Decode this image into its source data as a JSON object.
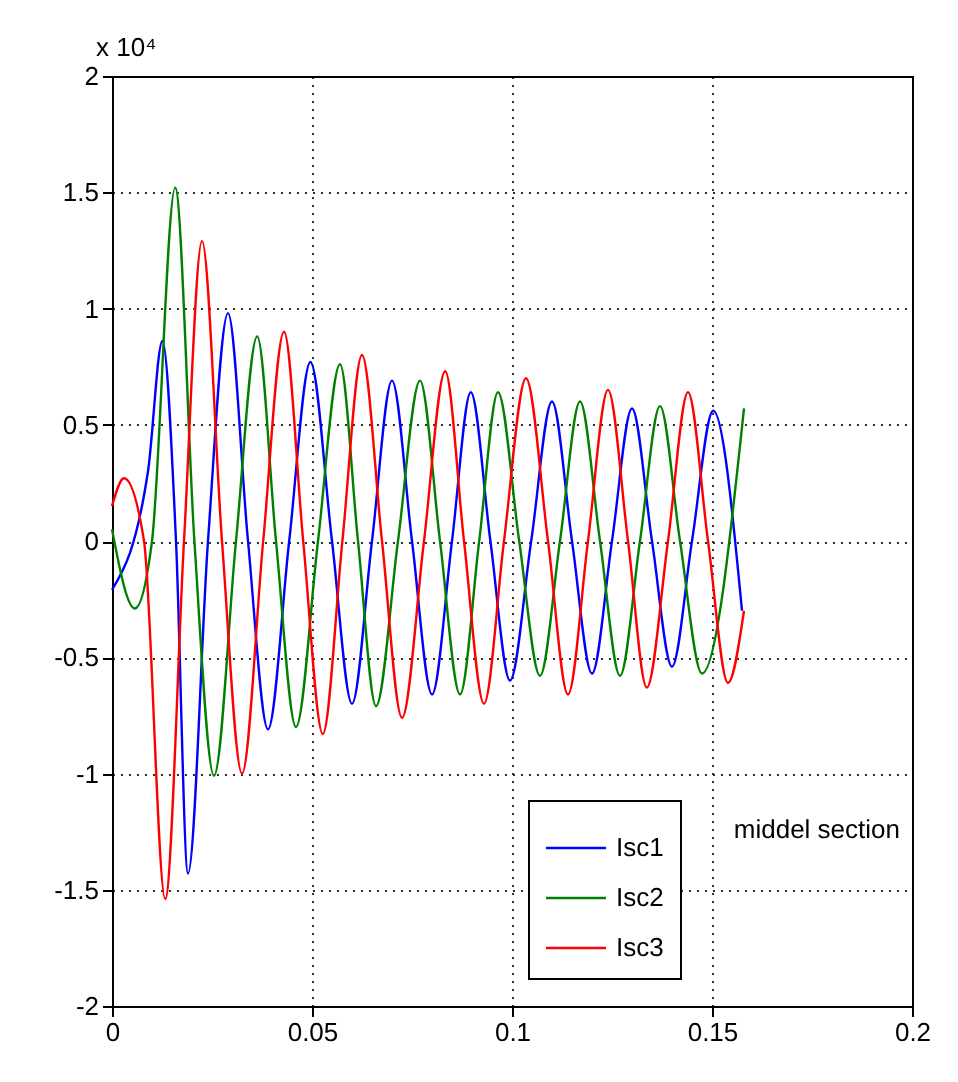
{
  "chart_data": {
    "type": "line",
    "xlim": [
      0,
      0.2
    ],
    "ylim": [
      -2,
      2
    ],
    "xticks": [
      0,
      0.05,
      0.1,
      0.15,
      0.2
    ],
    "yticks": [
      -2,
      -1.5,
      -1,
      -0.5,
      0,
      0.5,
      1,
      1.5,
      2
    ],
    "grid": true,
    "legend": "bottom right",
    "line_style": "solid",
    "marker": "none",
    "annotations": [
      "x 10⁴",
      "middel section"
    ],
    "series": [
      {
        "name": "Isc1",
        "color": "#0000ff",
        "x": [
          0,
          0.009,
          0.0126,
          0.016,
          0.019,
          0.024,
          0.029,
          0.034,
          0.039,
          0.0443,
          0.0496,
          0.055,
          0.06,
          0.065,
          0.07,
          0.075,
          0.08,
          0.085,
          0.0897,
          0.0946,
          0.0995,
          0.1048,
          0.11,
          0.115,
          0.12,
          0.125,
          0.13,
          0.135,
          0.14,
          0.145,
          0.1503,
          0.1575
        ],
        "values": [
          -0.21,
          0.3,
          0.86,
          0,
          -1.43,
          0,
          0.98,
          0,
          -0.81,
          0,
          0.77,
          0,
          -0.7,
          0,
          0.69,
          0,
          -0.66,
          0,
          0.64,
          0,
          -0.6,
          0,
          0.6,
          0,
          -0.57,
          0,
          0.57,
          0,
          -0.54,
          0,
          0.56,
          -0.3
        ]
      },
      {
        "name": "Isc2",
        "color": "#008000",
        "x": [
          0,
          0.0057,
          0.01,
          0.0158,
          0.0206,
          0.0255,
          0.031,
          0.0363,
          0.041,
          0.046,
          0.0515,
          0.057,
          0.0615,
          0.066,
          0.0715,
          0.077,
          0.082,
          0.087,
          0.0918,
          0.0965,
          0.1018,
          0.107,
          0.112,
          0.117,
          0.122,
          0.127,
          0.132,
          0.137,
          0.142,
          0.1475,
          0.158
        ],
        "values": [
          0.05,
          -0.29,
          0,
          1.52,
          0,
          -1.01,
          0,
          0.88,
          0,
          -0.8,
          0,
          0.76,
          0,
          -0.71,
          0,
          0.69,
          0,
          -0.66,
          0,
          0.64,
          0,
          -0.58,
          0,
          0.6,
          0,
          -0.58,
          0,
          0.58,
          0,
          -0.57,
          0.57
        ]
      },
      {
        "name": "Isc3",
        "color": "#ff0000",
        "x": [
          0,
          0.003,
          0.008,
          0.0133,
          0.018,
          0.0225,
          0.0275,
          0.0325,
          0.0378,
          0.043,
          0.0478,
          0.0527,
          0.0576,
          0.0625,
          0.0675,
          0.0725,
          0.078,
          0.0833,
          0.088,
          0.093,
          0.098,
          0.1035,
          0.109,
          0.114,
          0.119,
          0.124,
          0.129,
          0.1337,
          0.139,
          0.144,
          0.149,
          0.154,
          0.158
        ],
        "values": [
          0.15,
          0.27,
          0,
          -1.54,
          0,
          1.29,
          0,
          -1.0,
          0,
          0.9,
          0,
          -0.83,
          0,
          0.8,
          0,
          -0.76,
          0,
          0.73,
          0,
          -0.7,
          0,
          0.7,
          0,
          -0.66,
          0,
          0.65,
          0,
          -0.63,
          0,
          0.64,
          0,
          -0.61,
          -0.3
        ]
      }
    ]
  }
}
